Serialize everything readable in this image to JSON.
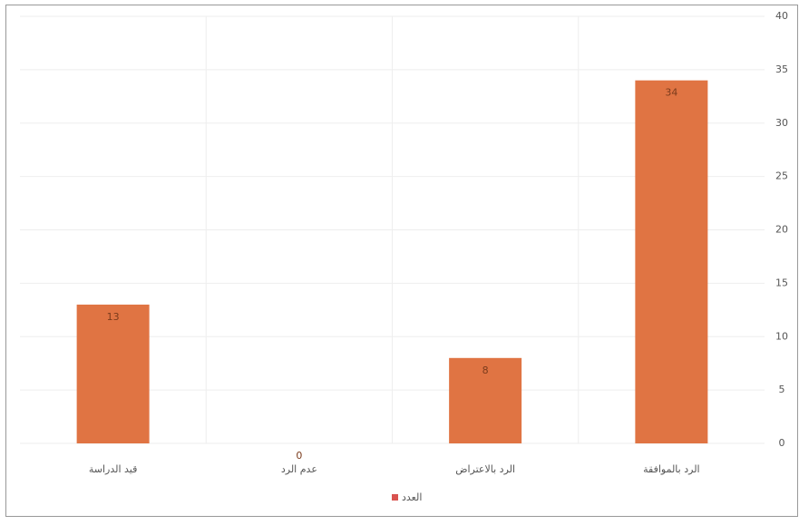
{
  "chart_data": {
    "type": "bar",
    "categories": [
      "قيد الدراسة",
      "عدم الرد",
      "الرد بالاعتراض",
      "الرد بالموافقة"
    ],
    "series": [
      {
        "name": "العدد",
        "color": "#e07443",
        "values": [
          13,
          0,
          8,
          34
        ]
      }
    ],
    "legend_color": "#d9534f",
    "ylim": [
      0,
      40
    ],
    "yticks": [
      0,
      5,
      10,
      15,
      20,
      25,
      30,
      35,
      40
    ],
    "grid": true
  }
}
